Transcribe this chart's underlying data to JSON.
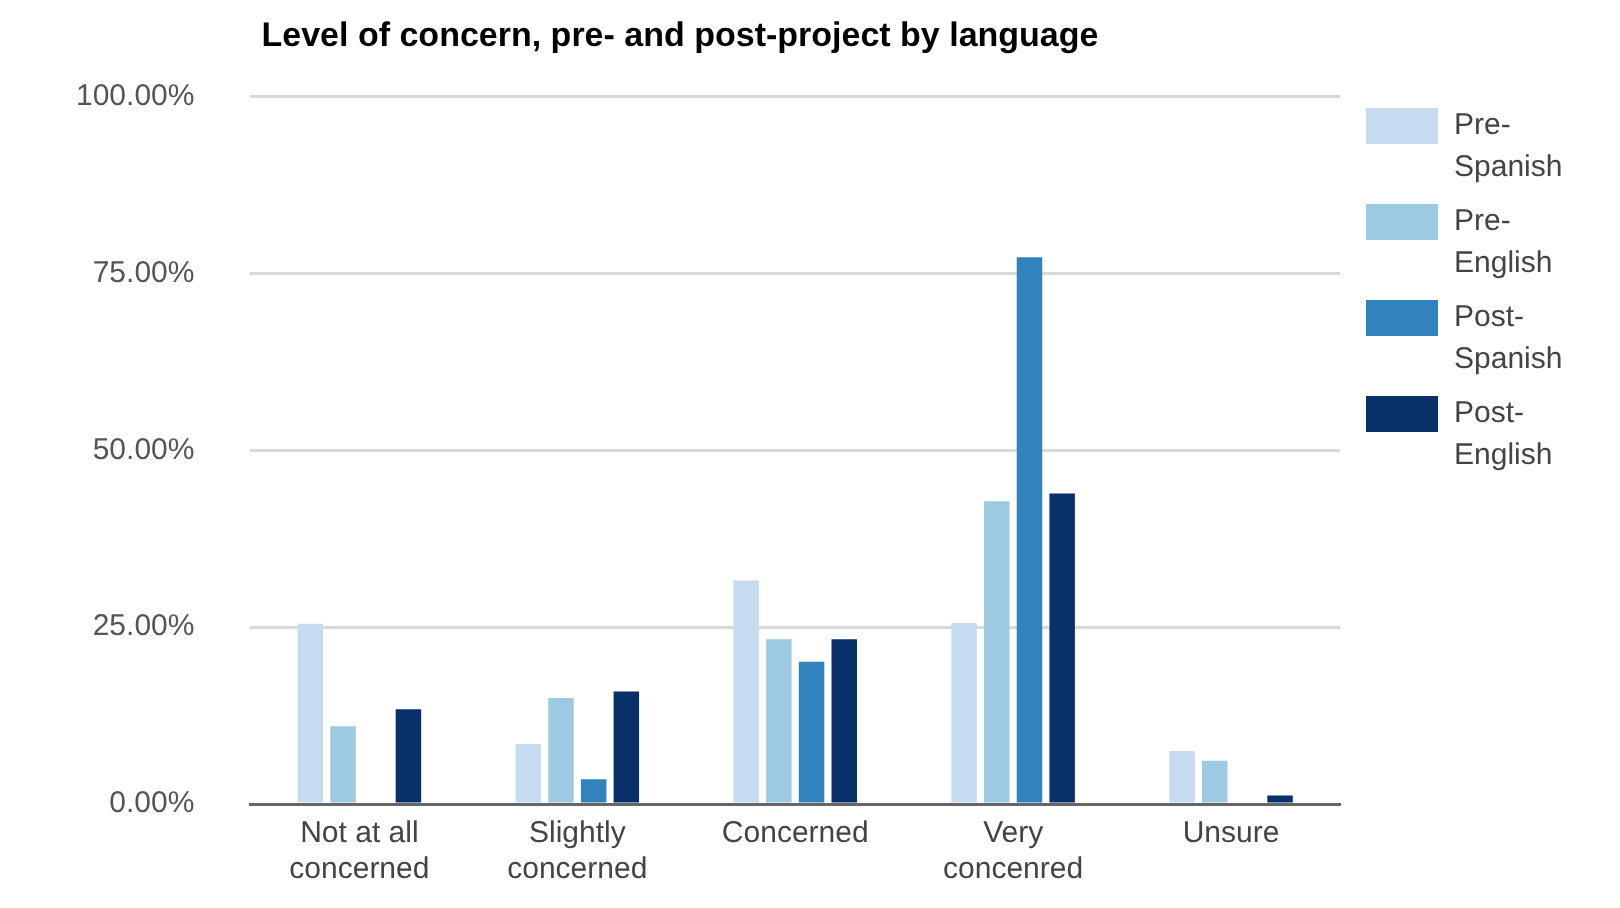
{
  "chart_data": {
    "type": "bar",
    "title": "Level of concern, pre- and post-project by language",
    "categories": [
      "Not at all concerned",
      "Slightly concerned",
      "Concerned",
      "Very concenred",
      "Unsure"
    ],
    "series": [
      {
        "name": "Pre-Spanish",
        "color": "#c6dbef",
        "values": [
          25.5,
          8.5,
          31.6,
          25.6,
          7.5
        ]
      },
      {
        "name": "Pre-English",
        "color": "#9ecae1",
        "values": [
          11.0,
          15.0,
          23.3,
          42.8,
          6.1
        ]
      },
      {
        "name": "Post-Spanish",
        "color": "#3182bd",
        "values": [
          0,
          3.5,
          20.1,
          77.3,
          0
        ]
      },
      {
        "name": "Post-English",
        "color": "#08306b",
        "values": [
          13.4,
          15.9,
          23.3,
          43.9,
          1.2
        ]
      }
    ],
    "ylim": [
      0,
      100
    ],
    "yticks": [
      {
        "value": 0,
        "label": "0.00%"
      },
      {
        "value": 25,
        "label": "25.00%"
      },
      {
        "value": 50,
        "label": "50.00%"
      },
      {
        "value": 75,
        "label": "75.00%"
      },
      {
        "value": 100,
        "label": "100.00%"
      }
    ],
    "grid": "y",
    "legend": "right"
  }
}
